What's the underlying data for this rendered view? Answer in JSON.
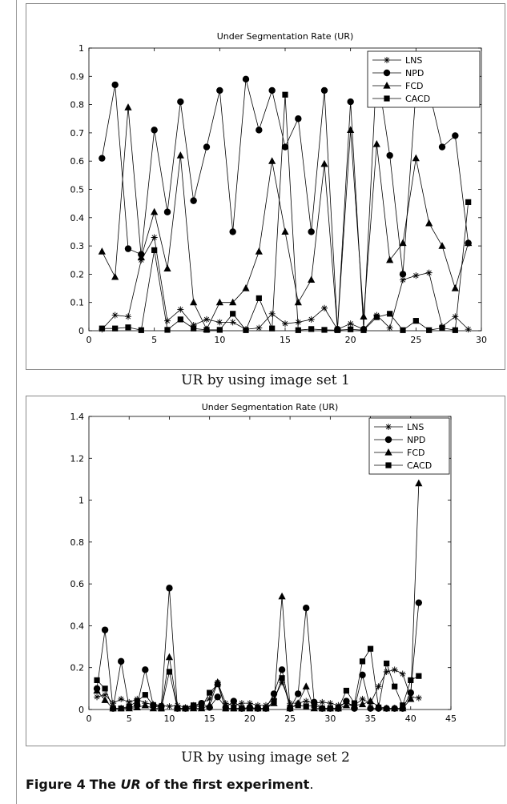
{
  "figure": {
    "label": "Figure 4",
    "caption_pre": "The ",
    "caption_em": "UR",
    "caption_post": " of the first experiment",
    "caption_period": "."
  },
  "panels": [
    {
      "caption": "UR by using image set 1"
    },
    {
      "caption": "UR by using image set 2"
    }
  ],
  "chart_data": [
    {
      "type": "line",
      "title": "Under Segmentation Rate (UR)",
      "xlabel": "",
      "ylabel": "",
      "xlim": [
        0,
        30
      ],
      "ylim": [
        0,
        1
      ],
      "xticks": [
        0,
        5,
        10,
        15,
        20,
        25,
        30
      ],
      "yticks": [
        0,
        0.1,
        0.2,
        0.3,
        0.4,
        0.5,
        0.6,
        0.7,
        0.8,
        0.9,
        1
      ],
      "ytick_labels": [
        "0",
        "0.1",
        "0.2",
        "0.3",
        "0.4",
        "0.5",
        "0.6",
        "0.7",
        "0.8",
        "0.9",
        "1"
      ],
      "legend": "top-right",
      "grid": false,
      "x": [
        1,
        2,
        3,
        4,
        5,
        6,
        7,
        8,
        9,
        10,
        11,
        12,
        13,
        14,
        15,
        16,
        17,
        18,
        19,
        20,
        21,
        22,
        23,
        24,
        25,
        26,
        27,
        28,
        29
      ],
      "series": [
        {
          "name": "LNS",
          "marker": "star",
          "values": [
            0.005,
            0.055,
            0.05,
            0.25,
            0.33,
            0.035,
            0.075,
            0.02,
            0.04,
            0.03,
            0.03,
            0.005,
            0.01,
            0.06,
            0.025,
            0.03,
            0.04,
            0.08,
            0.005,
            0.025,
            0.005,
            0.055,
            0.01,
            0.18,
            0.195,
            0.205,
            0.015,
            0.05,
            0.005
          ]
        },
        {
          "name": "NPD",
          "marker": "circle",
          "values": [
            0.61,
            0.87,
            0.29,
            0.27,
            0.71,
            0.42,
            0.81,
            0.46,
            0.65,
            0.85,
            0.35,
            0.89,
            0.71,
            0.85,
            0.65,
            0.75,
            0.35,
            0.85,
            0.005,
            0.81,
            0.005,
            0.93,
            0.62,
            0.2,
            0.85,
            0.85,
            0.65,
            0.69,
            0.31
          ]
        },
        {
          "name": "FCD",
          "marker": "triangle",
          "values": [
            0.28,
            0.19,
            0.79,
            0.26,
            0.42,
            0.22,
            0.62,
            0.1,
            0.005,
            0.1,
            0.1,
            0.15,
            0.28,
            0.6,
            0.35,
            0.1,
            0.18,
            0.59,
            0.005,
            0.71,
            0.05,
            0.66,
            0.25,
            0.31,
            0.61,
            0.38,
            0.3,
            0.15,
            0.31
          ]
        },
        {
          "name": "CACD",
          "marker": "square",
          "values": [
            0.008,
            0.008,
            0.012,
            0.002,
            0.285,
            0.003,
            0.04,
            0.008,
            0.003,
            0.003,
            0.06,
            0.002,
            0.115,
            0.008,
            0.835,
            0.002,
            0.006,
            0.003,
            0.002,
            0.005,
            0.002,
            0.048,
            0.06,
            0.002,
            0.035,
            0.002,
            0.01,
            0.002,
            0.455
          ]
        }
      ]
    },
    {
      "type": "line",
      "title": "Under Segmentation Rate (UR)",
      "xlabel": "",
      "ylabel": "",
      "xlim": [
        0,
        45
      ],
      "ylim": [
        0,
        1.4
      ],
      "xticks": [
        0,
        5,
        10,
        15,
        20,
        25,
        30,
        35,
        40,
        45
      ],
      "yticks": [
        0,
        0.2,
        0.4,
        0.6,
        0.8,
        1,
        1.2,
        1.4
      ],
      "ytick_labels": [
        "0",
        "0.2",
        "0.4",
        "0.6",
        "0.8",
        "1",
        "1.2",
        "1.4"
      ],
      "legend": "top-right",
      "grid": false,
      "x": [
        1,
        2,
        3,
        4,
        5,
        6,
        7,
        8,
        9,
        10,
        11,
        12,
        13,
        14,
        15,
        16,
        17,
        18,
        19,
        20,
        21,
        22,
        23,
        24,
        25,
        26,
        27,
        28,
        29,
        30,
        31,
        32,
        33,
        34,
        35,
        36,
        37,
        38,
        39,
        40,
        41
      ],
      "series": [
        {
          "name": "LNS",
          "marker": "star",
          "values": [
            0.06,
            0.07,
            0.03,
            0.05,
            0.035,
            0.05,
            0.03,
            0.025,
            0.02,
            0.015,
            0.02,
            0.01,
            0.02,
            0.03,
            0.05,
            0.13,
            0.03,
            0.02,
            0.03,
            0.03,
            0.02,
            0.02,
            0.05,
            0.13,
            0.03,
            0.03,
            0.04,
            0.03,
            0.035,
            0.03,
            0.02,
            0.03,
            0.02,
            0.05,
            0.03,
            0.11,
            0.18,
            0.19,
            0.17,
            0.06,
            0.055
          ]
        },
        {
          "name": "NPD",
          "marker": "circle",
          "values": [
            0.1,
            0.38,
            0.005,
            0.23,
            0.01,
            0.02,
            0.19,
            0.02,
            0.015,
            0.58,
            0.005,
            0.005,
            0.01,
            0.03,
            0.01,
            0.06,
            0.01,
            0.04,
            0.005,
            0.01,
            0.005,
            0.005,
            0.075,
            0.19,
            0.005,
            0.075,
            0.485,
            0.035,
            0.005,
            0.005,
            0.005,
            0.04,
            0.005,
            0.165,
            0.005,
            0.005,
            0.005,
            0.005,
            0.005,
            0.08,
            0.51
          ]
        },
        {
          "name": "FCD",
          "marker": "triangle",
          "values": [
            0.09,
            0.045,
            0.005,
            0.005,
            0.005,
            0.01,
            0.02,
            0.005,
            0.005,
            0.25,
            0.005,
            0.005,
            0.005,
            0.005,
            0.02,
            0.13,
            0.005,
            0.005,
            0.005,
            0.005,
            0.005,
            0.005,
            0.03,
            0.54,
            0.005,
            0.03,
            0.11,
            0.005,
            0.005,
            0.005,
            0.005,
            0.02,
            0.02,
            0.025,
            0.04,
            0.015,
            0.005,
            0.005,
            0.005,
            0.05,
            1.08
          ]
        },
        {
          "name": "CACD",
          "marker": "square",
          "values": [
            0.14,
            0.1,
            0.005,
            0.005,
            0.015,
            0.04,
            0.07,
            0.02,
            0.005,
            0.18,
            0.005,
            0.005,
            0.02,
            0.01,
            0.08,
            0.12,
            0.005,
            0.005,
            0.005,
            0.005,
            0.005,
            0.005,
            0.04,
            0.15,
            0.01,
            0.02,
            0.015,
            0.02,
            0.005,
            0.005,
            0.005,
            0.09,
            0.03,
            0.23,
            0.29,
            0.01,
            0.22,
            0.11,
            0.02,
            0.14,
            0.16
          ]
        }
      ]
    }
  ]
}
